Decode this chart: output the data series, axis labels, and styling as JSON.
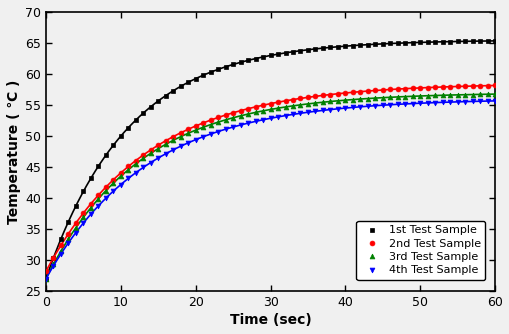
{
  "title": "",
  "xlabel": "Time (sec)",
  "ylabel": "Temperature ( ℃ )",
  "xlim": [
    0,
    60
  ],
  "ylim": [
    25,
    70
  ],
  "xticks": [
    0,
    10,
    20,
    30,
    40,
    50,
    60
  ],
  "yticks": [
    25,
    30,
    35,
    40,
    45,
    50,
    55,
    60,
    65,
    70
  ],
  "series": [
    {
      "label": "1st Test Sample",
      "color": "black",
      "marker": "s",
      "T0": 27.0,
      "T_inf": 65.5,
      "tau": 11.0
    },
    {
      "label": "2nd Test Sample",
      "color": "red",
      "marker": "o",
      "T0": 28.2,
      "T_inf": 58.5,
      "tau": 13.5
    },
    {
      "label": "3rd Test Sample",
      "color": "green",
      "marker": "^",
      "T0": 27.0,
      "T_inf": 57.0,
      "tau": 12.5
    },
    {
      "label": "4th Test Sample",
      "color": "blue",
      "marker": "v",
      "T0": 27.0,
      "T_inf": 56.0,
      "tau": 13.5
    }
  ],
  "background_color": "#f0f0f0",
  "plot_bg_color": "#f0f0f0",
  "marker_every": 1,
  "marker_size": 3.5,
  "linewidth": 1.2,
  "legend_fontsize": 8,
  "axis_fontsize": 10,
  "tick_fontsize": 9
}
